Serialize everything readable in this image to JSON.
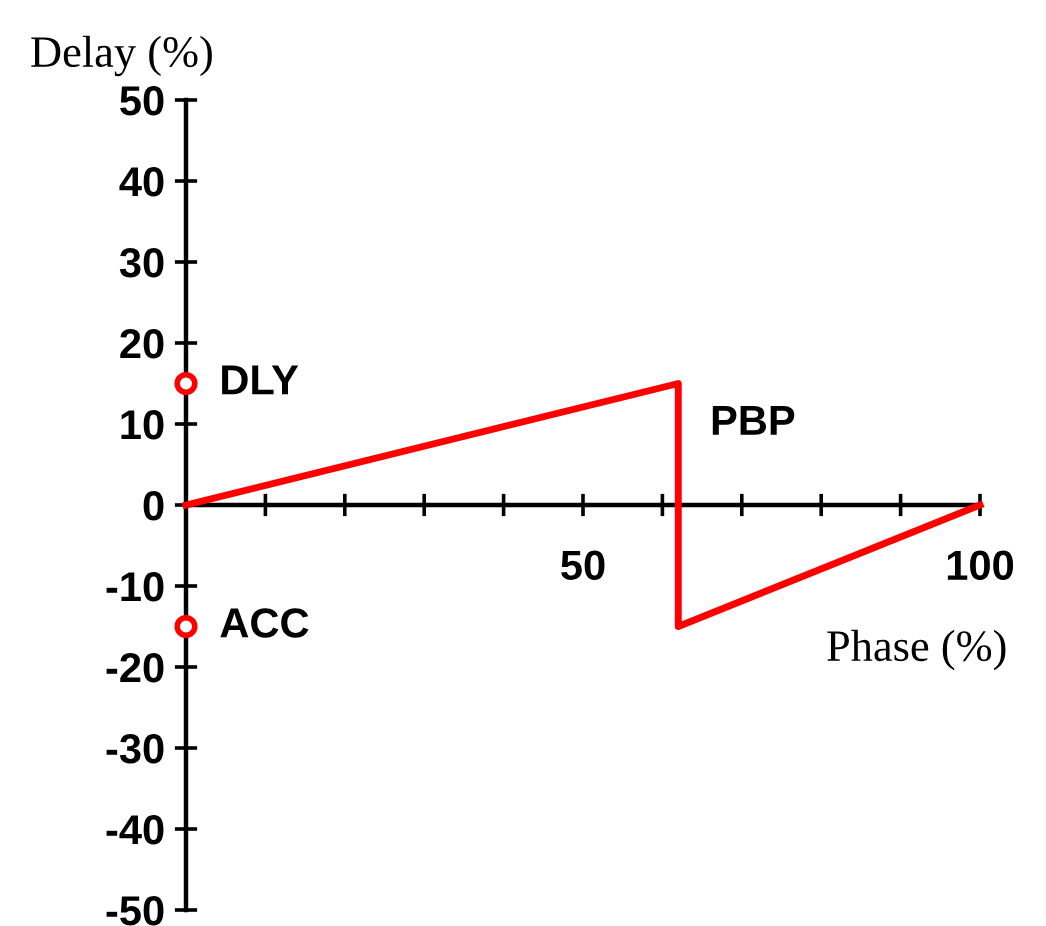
{
  "chart_data": {
    "type": "line",
    "xlabel": "Phase (%)",
    "ylabel": "Delay (%)",
    "xlim": [
      0,
      100
    ],
    "ylim": [
      -50,
      50
    ],
    "xticks": [
      {
        "value": 0,
        "label": null
      },
      {
        "value": 10,
        "label": null
      },
      {
        "value": 20,
        "label": null
      },
      {
        "value": 30,
        "label": null
      },
      {
        "value": 40,
        "label": null
      },
      50,
      {
        "value": 60,
        "label": null
      },
      {
        "value": 70,
        "label": null
      },
      {
        "value": 80,
        "label": null
      },
      {
        "value": 90,
        "label": null
      },
      100
    ],
    "yticks": [
      -50,
      -40,
      -30,
      -20,
      -10,
      0,
      10,
      20,
      30,
      40,
      50
    ],
    "series": [
      {
        "color": "#ff0000",
        "x": [
          0,
          62,
          62,
          100
        ],
        "values": [
          0,
          15,
          -15,
          0
        ],
        "marker": "none"
      },
      {
        "type": "scatter",
        "color": "#ff0000",
        "x": [
          0,
          0
        ],
        "values": [
          15,
          -15
        ],
        "marker": "circle"
      }
    ],
    "annotations": [
      {
        "text": "DLY",
        "x": 0,
        "y": 15
      },
      {
        "text": "ACC",
        "x": 0,
        "y": -15
      },
      "PBP"
    ],
    "grid": false,
    "legend": false
  }
}
